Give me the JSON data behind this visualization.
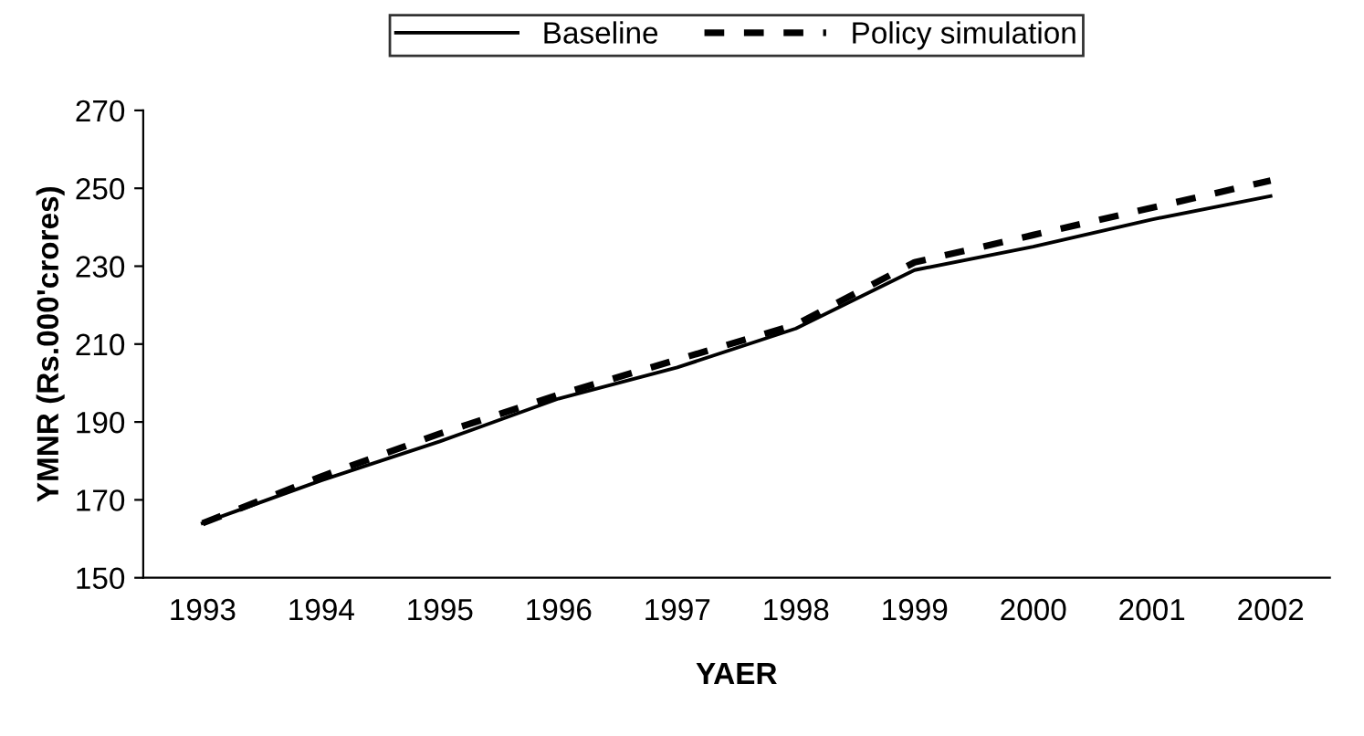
{
  "chart_data": {
    "type": "line",
    "xlabel": "YAER",
    "ylabel": "YMNR (Rs.000'crores)",
    "categories": [
      "1993",
      "1994",
      "1995",
      "1996",
      "1997",
      "1998",
      "1999",
      "2000",
      "2001",
      "2002"
    ],
    "series": [
      {
        "name": "Baseline",
        "color": "#000000",
        "line_style": "solid",
        "values": [
          164,
          175,
          185,
          196,
          204,
          214,
          229,
          235,
          242,
          248
        ]
      },
      {
        "name": "Policy simulation",
        "color": "#000000",
        "line_style": "dashed",
        "values": [
          164,
          176,
          187,
          197,
          206,
          215,
          231,
          238,
          245,
          252
        ]
      }
    ],
    "ylim": [
      150,
      270
    ],
    "yticks": [
      150,
      170,
      190,
      210,
      230,
      250,
      270
    ],
    "grid": false,
    "legend": "top",
    "marker": "none"
  }
}
